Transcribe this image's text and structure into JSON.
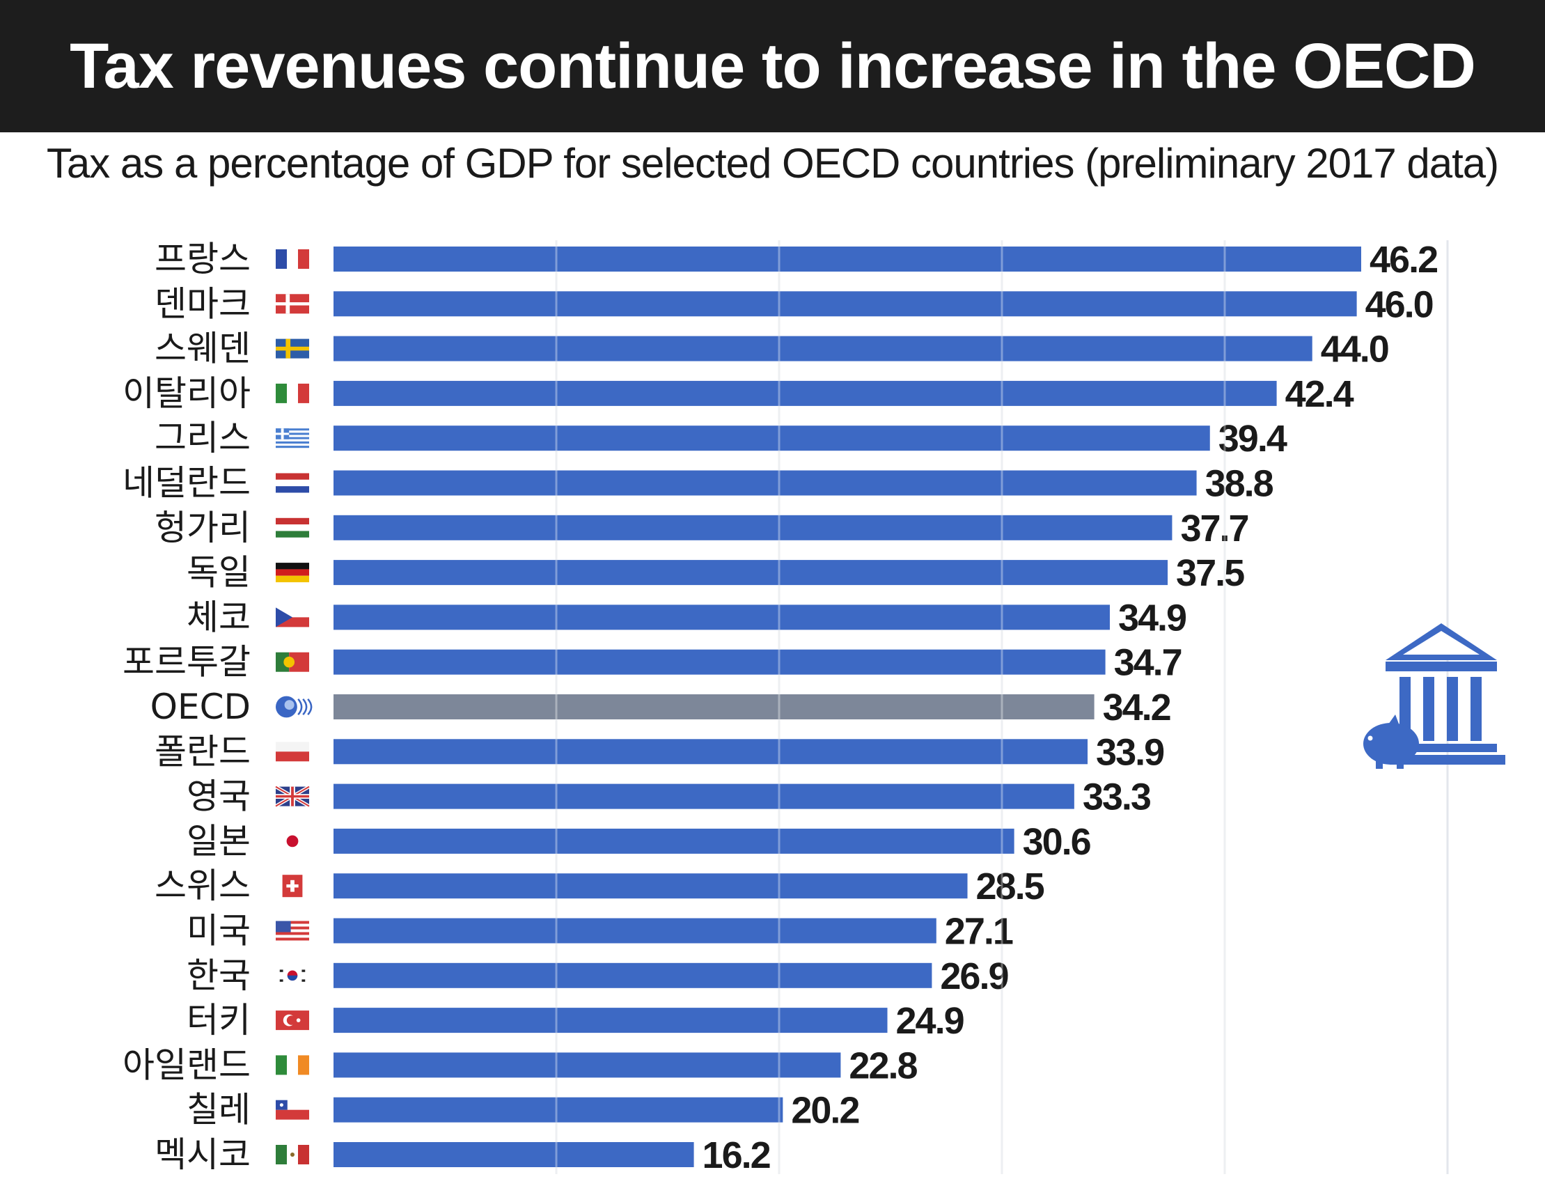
{
  "title": "Tax revenues continue to increase in the OECD",
  "subtitle": "Tax as a percentage of GDP for selected OECD countries (preliminary 2017 data)",
  "colors": {
    "bar": "#3d69c4",
    "bar_oecd": "#7d8799",
    "title_bg": "#1d1d1d",
    "icon": "#3d69c4"
  },
  "icon": "bank-piggy-icon",
  "chart_data": {
    "type": "bar",
    "orientation": "horizontal",
    "title": "Tax revenues continue to increase in the OECD",
    "subtitle": "Tax as a percentage of GDP for selected OECD countries (preliminary 2017 data)",
    "xlim": [
      0,
      46.2
    ],
    "grid": true,
    "categories": [
      "프랑스",
      "덴마크",
      "스웨덴",
      "이탈리아",
      "그리스",
      "네덜란드",
      "헝가리",
      "독일",
      "체코",
      "포르투갈",
      "OECD",
      "폴란드",
      "영국",
      "일본",
      "스위스",
      "미국",
      "한국",
      "터키",
      "아일랜드",
      "칠레",
      "멕시코"
    ],
    "values": [
      46.2,
      46.0,
      44.0,
      42.4,
      39.4,
      38.8,
      37.7,
      37.5,
      34.9,
      34.7,
      34.2,
      33.9,
      33.3,
      30.6,
      28.5,
      27.1,
      26.9,
      24.9,
      22.8,
      20.2,
      16.2
    ],
    "value_labels": [
      "46.2",
      "46.0",
      "44.0",
      "42.4",
      "39.4",
      "38.8",
      "37.7",
      "37.5",
      "34.9",
      "34.7",
      "34.2",
      "33.9",
      "33.3",
      "30.6",
      "28.5",
      "27.1",
      "26.9",
      "24.9",
      "22.8",
      "20.2",
      "16.2"
    ],
    "flags": [
      "france-flag-icon",
      "denmark-flag-icon",
      "sweden-flag-icon",
      "italy-flag-icon",
      "greece-flag-icon",
      "netherlands-flag-icon",
      "hungary-flag-icon",
      "germany-flag-icon",
      "czech-flag-icon",
      "portugal-flag-icon",
      "oecd-logo-icon",
      "poland-flag-icon",
      "uk-flag-icon",
      "japan-flag-icon",
      "switzerland-flag-icon",
      "usa-flag-icon",
      "korea-flag-icon",
      "turkey-flag-icon",
      "ireland-flag-icon",
      "chile-flag-icon",
      "mexico-flag-icon"
    ],
    "highlight": "OECD"
  }
}
